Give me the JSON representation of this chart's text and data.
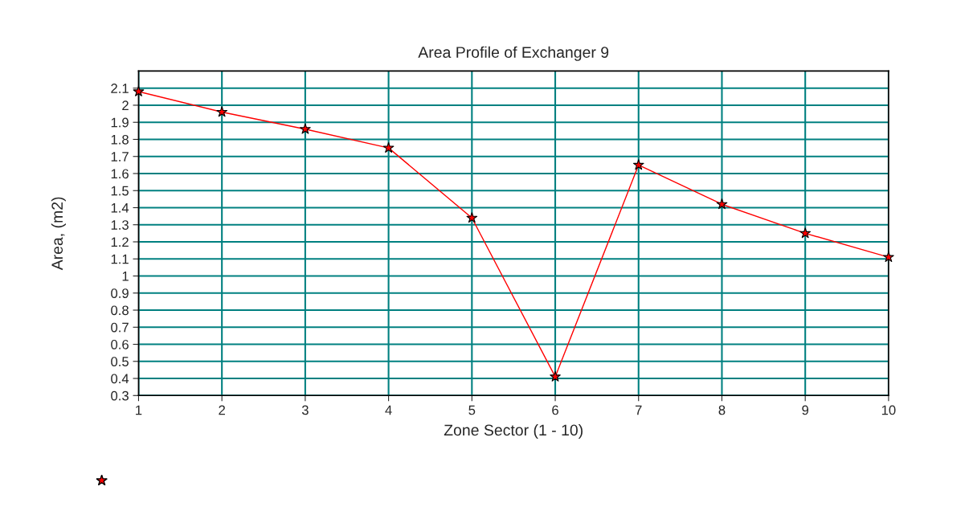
{
  "chart_data": {
    "type": "line",
    "title": "Area Profile of Exchanger 9",
    "xlabel": "Zone Sector (1 - 10)",
    "ylabel": "Area, (m2)",
    "x": [
      1,
      2,
      3,
      4,
      5,
      6,
      7,
      8,
      9,
      10
    ],
    "series": [
      {
        "color": "#ff0000",
        "values": [
          2.08,
          1.96,
          1.86,
          1.75,
          1.34,
          0.41,
          1.65,
          1.42,
          1.25,
          1.11
        ]
      }
    ],
    "xlim": [
      1,
      10
    ],
    "xticks": [
      1,
      2,
      3,
      4,
      5,
      6,
      7,
      8,
      9,
      10
    ],
    "ylim": [
      0.3,
      2.2
    ],
    "yticks": [
      0.3,
      0.4,
      0.5,
      0.6,
      0.7,
      0.8,
      0.9,
      1,
      1.1,
      1.2,
      1.3,
      1.4,
      1.5,
      1.6,
      1.7,
      1.8,
      1.9,
      2,
      2.1
    ],
    "grid": true,
    "marker": "star",
    "line_style": "solid"
  }
}
